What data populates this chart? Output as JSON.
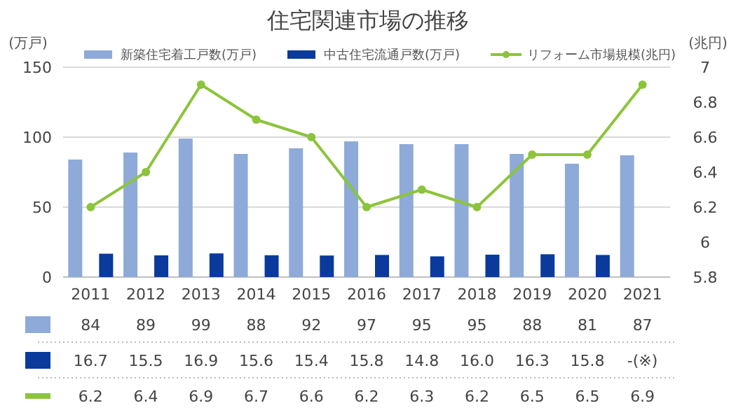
{
  "chart_data": {
    "type": "bar",
    "title": "住宅関連市場の推移",
    "ylabel": "(万戸)",
    "y2label": "(兆円)",
    "categories": [
      "2011",
      "2012",
      "2013",
      "2014",
      "2015",
      "2016",
      "2017",
      "2018",
      "2019",
      "2020",
      "2021"
    ],
    "ylim": [
      0,
      150
    ],
    "yticks": [
      0,
      50,
      100,
      150
    ],
    "y2lim": [
      5.8,
      7
    ],
    "y2ticks": [
      5.8,
      {
        "value": 6,
        "label": "6"
      },
      6.2,
      6.4,
      6.6,
      6.8,
      {
        "value": 7,
        "label": "7"
      }
    ],
    "grid": "y",
    "legend": "top",
    "data_labels": true,
    "series": [
      {
        "name": "新築住宅着工戸数(万戸)",
        "color": "#8eaad8",
        "values": [
          84,
          89,
          99,
          88,
          92,
          97,
          95,
          95,
          88,
          81,
          87
        ],
        "value_labels": [
          "84",
          "89",
          "99",
          "88",
          "92",
          "97",
          "95",
          "95",
          "88",
          "81",
          "87"
        ]
      },
      {
        "name": "中古住宅流通戸数(万戸)",
        "color": "#0a3a9c",
        "values": [
          16.7,
          15.5,
          16.9,
          15.6,
          15.4,
          15.8,
          14.8,
          16.0,
          16.3,
          15.8,
          null
        ],
        "value_labels": [
          "16.7",
          "15.5",
          "16.9",
          "15.6",
          "15.4",
          "15.8",
          "14.8",
          "16.0",
          "16.3",
          "15.8",
          "-(※)"
        ]
      },
      {
        "name": "リフォーム市場規模(兆円)",
        "type": "line",
        "axis": "y2",
        "marker": "circle",
        "line_style": "solid",
        "color": "#8cc43c",
        "values": [
          6.2,
          6.4,
          6.9,
          6.7,
          6.6,
          6.2,
          6.3,
          6.2,
          6.5,
          6.5,
          6.9
        ],
        "value_labels": [
          "6.2",
          "6.4",
          "6.9",
          "6.7",
          "6.6",
          "6.2",
          "6.3",
          "6.2",
          "6.5",
          "6.5",
          "6.9"
        ]
      }
    ]
  }
}
